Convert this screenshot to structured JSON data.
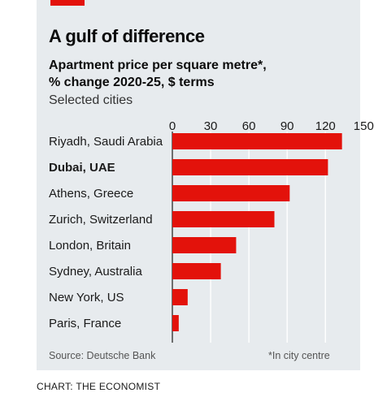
{
  "header": {
    "title": "A gulf of difference",
    "subtitle_line1": "Apartment price per square metre*,",
    "subtitle_line2": "% change 2020-25, $ terms",
    "subtitle_line3": "Selected cities"
  },
  "footer": {
    "source": "Source: Deutsche Bank",
    "footnote": "*In city centre",
    "credit": "CHART: THE ECONOMIST"
  },
  "colors": {
    "bar": "#e3120b",
    "accent": "#e3120b",
    "panel": "#e7ebee",
    "gridline": "#ffffff"
  },
  "chart_data": {
    "type": "bar",
    "orientation": "horizontal",
    "categories": [
      "Riyadh, Saudi Arabia",
      "Dubai, UAE",
      "Athens, Greece",
      "Zurich, Switzerland",
      "London, Britain",
      "Sydney, Australia",
      "New York, US",
      "Paris, France"
    ],
    "highlighted_category": "Dubai, UAE",
    "values": [
      133,
      122,
      92,
      80,
      50,
      38,
      12,
      5
    ],
    "xlim": [
      0,
      160
    ],
    "xticks": [
      0,
      30,
      60,
      90,
      120,
      150
    ],
    "tick_labels": [
      "0",
      "30",
      "60",
      "90",
      "120",
      "150"
    ],
    "grid": true,
    "axis_position": "top"
  }
}
